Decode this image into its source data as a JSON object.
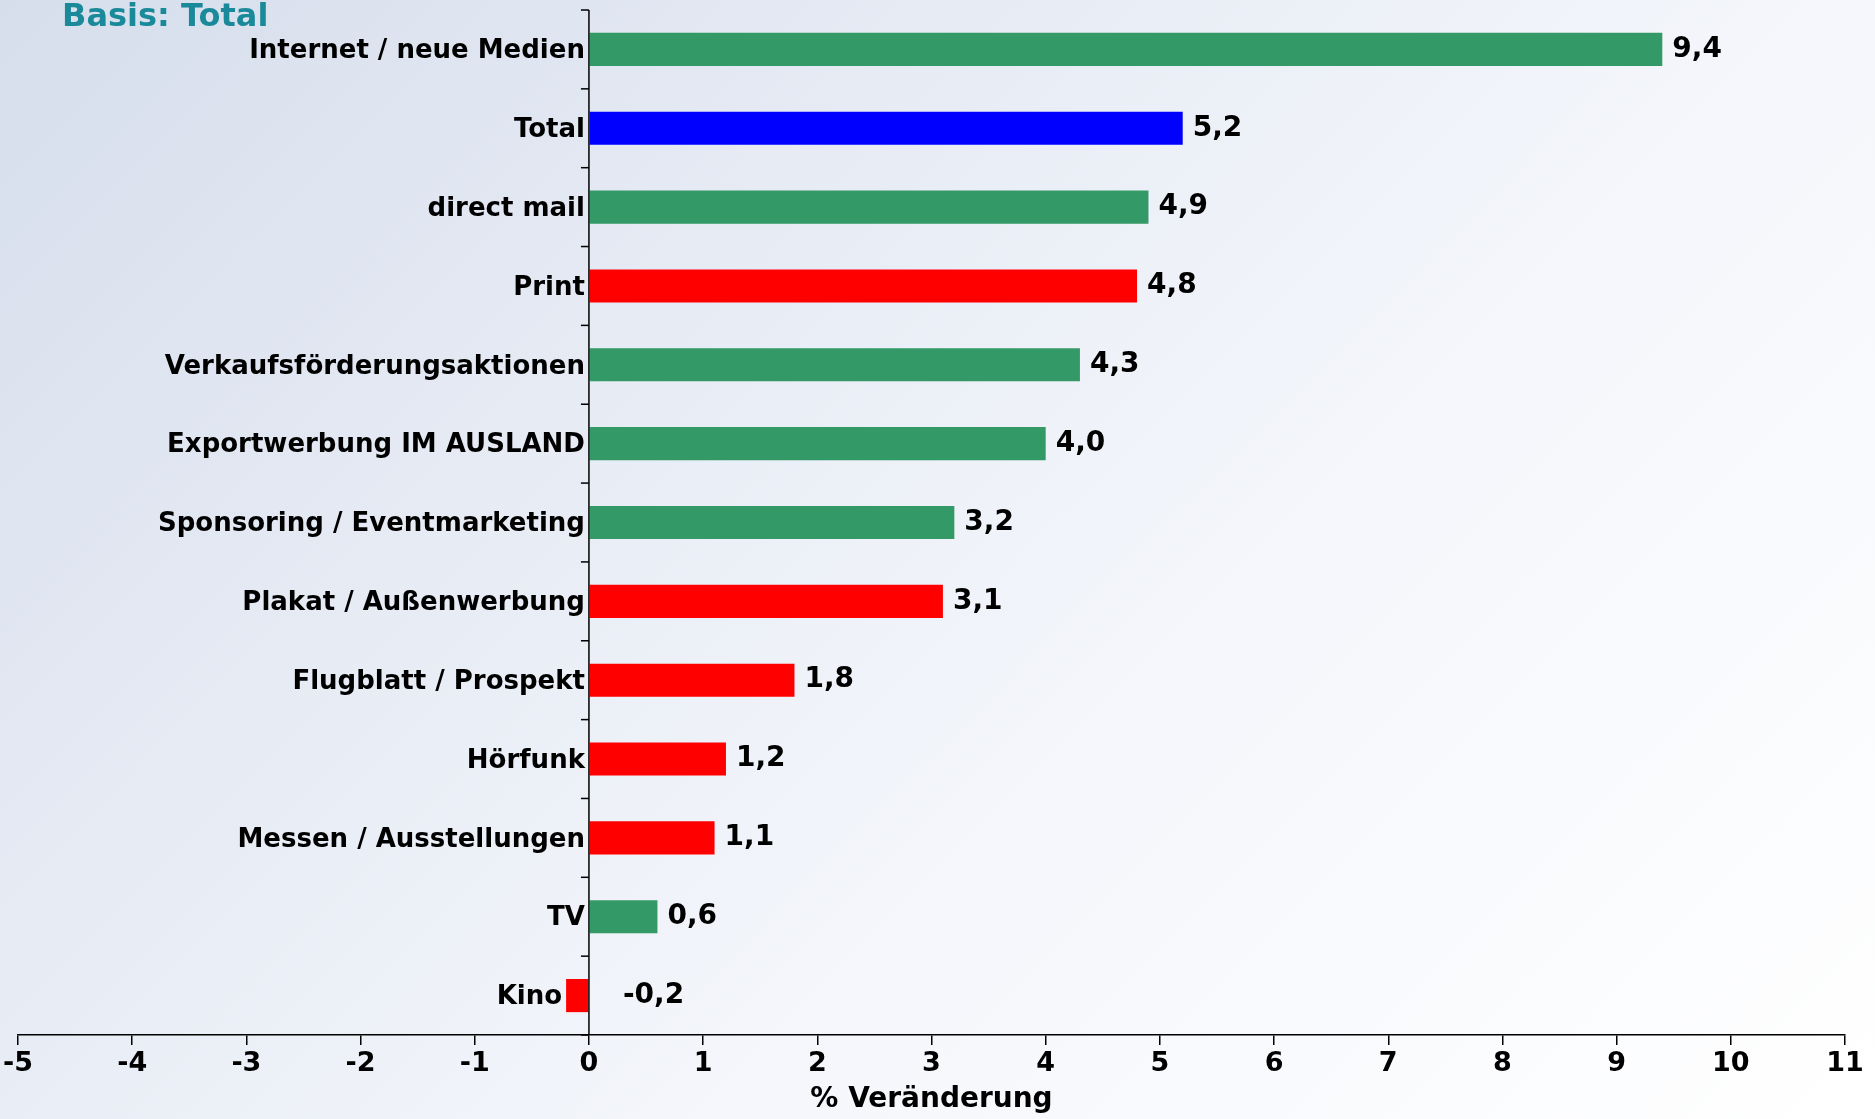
{
  "chart_data": {
    "type": "bar",
    "orientation": "horizontal",
    "title": "Basis: Total",
    "xlabel": "% Veränderung",
    "categories": [
      "Internet / neue Medien",
      "Total",
      "direct mail",
      "Print",
      "Verkaufsförderungsaktionen",
      "Exportwerbung IM AUSLAND",
      "Sponsoring / Eventmarketing",
      "Plakat / Außenwerbung",
      "Flugblatt / Prospekt",
      "Hörfunk",
      "Messen / Ausstellungen",
      "TV",
      "Kino"
    ],
    "values": [
      9.4,
      5.2,
      4.9,
      4.8,
      4.3,
      4.0,
      3.2,
      3.1,
      1.8,
      1.2,
      1.1,
      0.6,
      -0.2
    ],
    "value_labels": [
      "9,4",
      "5,2",
      "4,9",
      "4,8",
      "4,3",
      "4,0",
      "3,2",
      "3,1",
      "1,8",
      "1,2",
      "1,1",
      "0,6",
      "-0,2"
    ],
    "colors": [
      "#339966",
      "#0000ff",
      "#339966",
      "#ff0000",
      "#339966",
      "#339966",
      "#339966",
      "#ff0000",
      "#ff0000",
      "#ff0000",
      "#ff0000",
      "#339966",
      "#ff0000"
    ],
    "xlim": [
      -5,
      11
    ],
    "xticks": [
      -5,
      -4,
      -3,
      -2,
      -1,
      0,
      1,
      2,
      3,
      4,
      5,
      6,
      7,
      8,
      9,
      10,
      11
    ],
    "grid": false,
    "legend": false
  }
}
